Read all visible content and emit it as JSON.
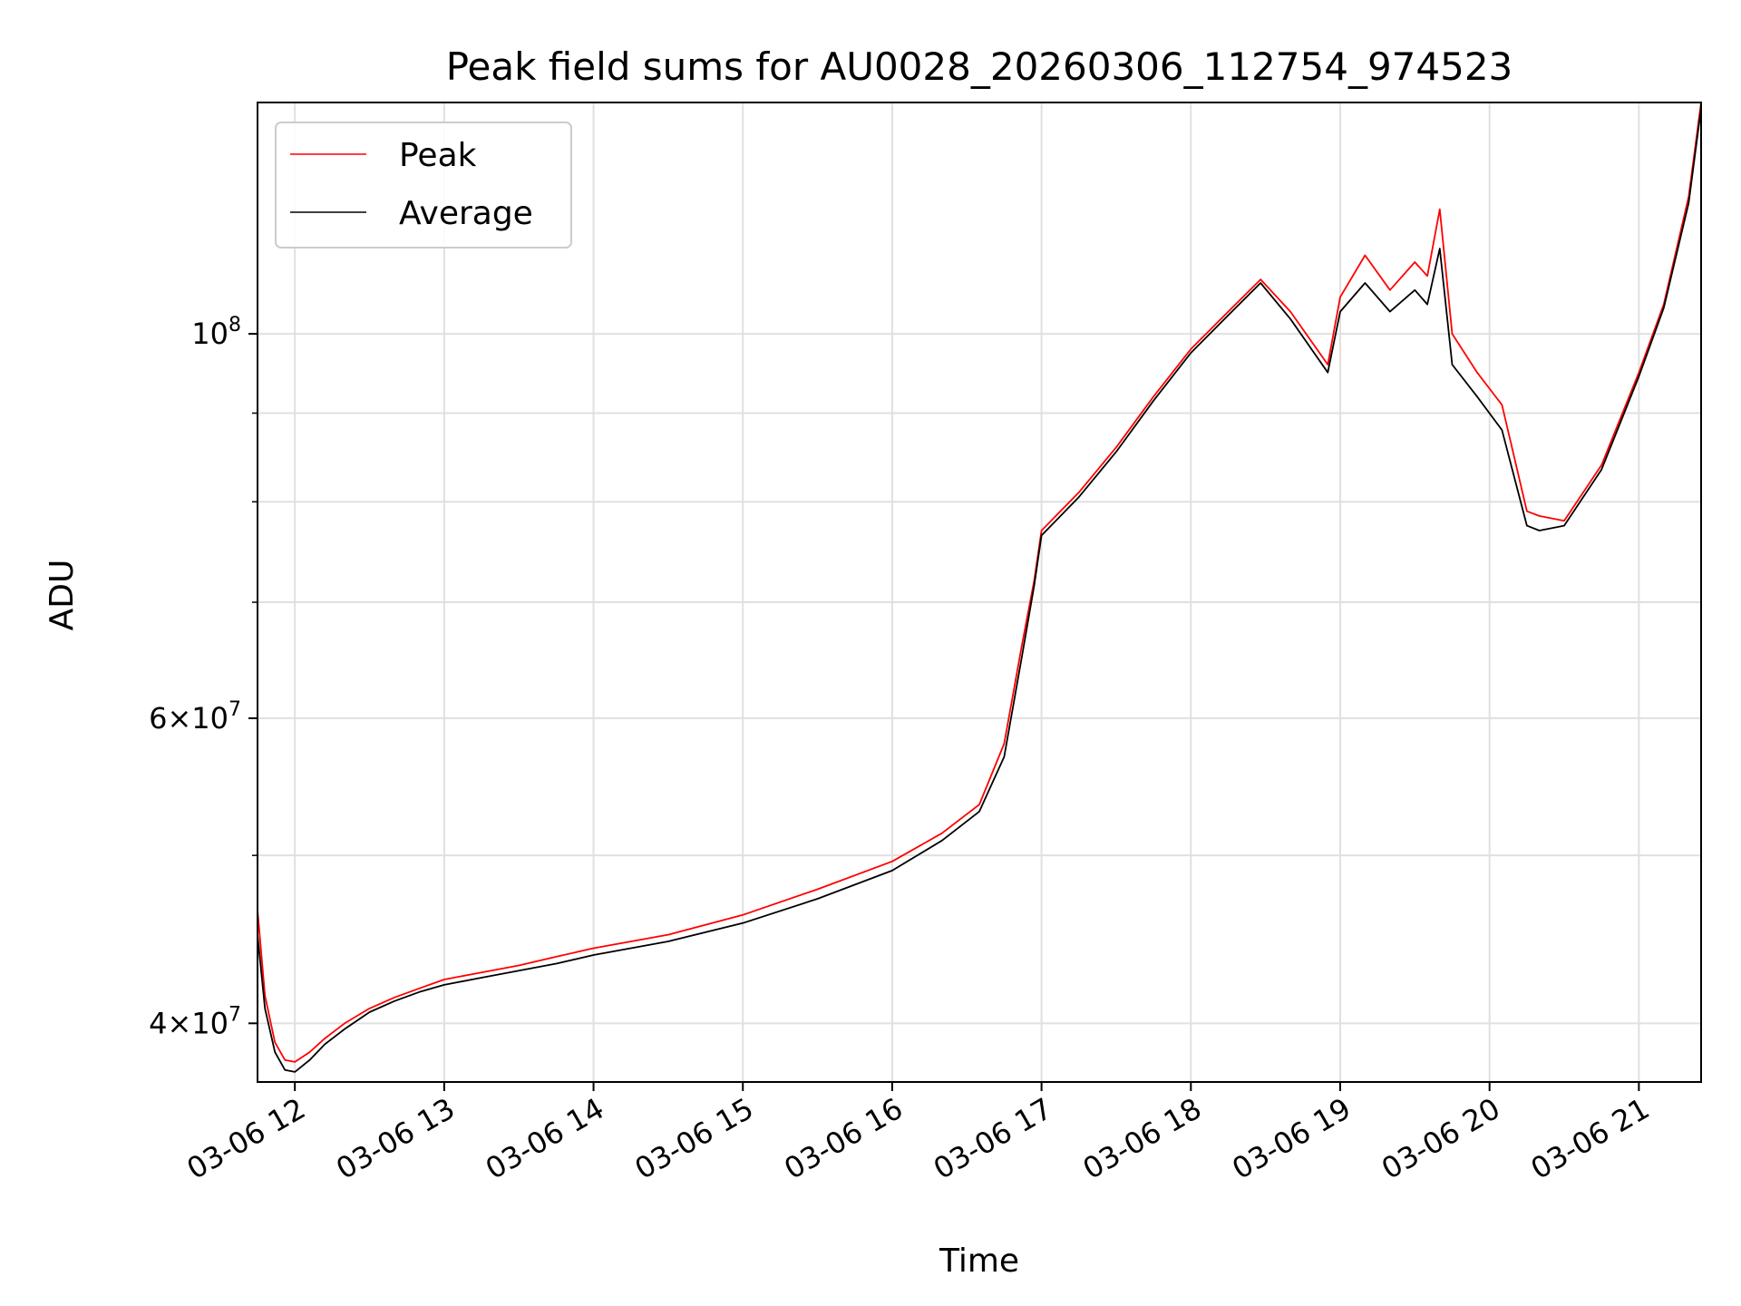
{
  "chart_data": {
    "type": "line",
    "title": "Peak field sums for AU0028_20260306_112754_974523",
    "xlabel": "Time",
    "ylabel": "ADU",
    "y_scale": "log",
    "ylim": [
      37000000,
      136000000
    ],
    "xlim": [
      "03-06 11:45",
      "03-06 21:25"
    ],
    "grid": true,
    "legend_position": "top-left",
    "x_ticks": [
      "03-06 12",
      "03-06 13",
      "03-06 14",
      "03-06 15",
      "03-06 16",
      "03-06 17",
      "03-06 18",
      "03-06 19",
      "03-06 20",
      "03-06 21"
    ],
    "y_ticks_major": [
      {
        "value": 40000000,
        "mantissa": "4",
        "exponent": "7"
      },
      {
        "value": 60000000,
        "mantissa": "6",
        "exponent": "7"
      },
      {
        "value": 100000000,
        "mantissa": "",
        "exponent": "8"
      }
    ],
    "y_ticks_minor": [
      50000000,
      70000000,
      80000000,
      90000000
    ],
    "series": [
      {
        "name": "Peak",
        "color": "#ff0000",
        "x": [
          "03-06 11:45",
          "03-06 11:48",
          "03-06 11:52",
          "03-06 11:56",
          "03-06 12:00",
          "03-06 12:06",
          "03-06 12:12",
          "03-06 12:20",
          "03-06 12:30",
          "03-06 12:40",
          "03-06 12:50",
          "03-06 13:00",
          "03-06 13:15",
          "03-06 13:30",
          "03-06 13:45",
          "03-06 14:00",
          "03-06 14:30",
          "03-06 15:00",
          "03-06 15:30",
          "03-06 16:00",
          "03-06 16:20",
          "03-06 16:35",
          "03-06 16:45",
          "03-06 16:52",
          "03-06 16:57",
          "03-06 17:00",
          "03-06 17:15",
          "03-06 17:30",
          "03-06 17:45",
          "03-06 18:00",
          "03-06 18:15",
          "03-06 18:28",
          "03-06 18:40",
          "03-06 18:55",
          "03-06 19:00",
          "03-06 19:10",
          "03-06 19:20",
          "03-06 19:30",
          "03-06 19:35",
          "03-06 19:40",
          "03-06 19:45",
          "03-06 19:55",
          "03-06 20:05",
          "03-06 20:15",
          "03-06 20:20",
          "03-06 20:30",
          "03-06 20:45",
          "03-06 21:00",
          "03-06 21:10",
          "03-06 21:20",
          "03-06 21:25"
        ],
        "values": [
          46500000,
          41500000,
          39000000,
          38100000,
          38000000,
          38500000,
          39200000,
          40000000,
          40800000,
          41400000,
          41900000,
          42400000,
          42800000,
          43200000,
          43700000,
          44200000,
          45000000,
          46200000,
          47800000,
          49600000,
          51500000,
          53500000,
          58000000,
          66000000,
          72000000,
          77000000,
          81000000,
          86000000,
          92000000,
          98000000,
          103000000,
          107500000,
          103000000,
          96000000,
          105000000,
          111000000,
          106000000,
          110000000,
          108000000,
          118000000,
          100000000,
          95000000,
          91000000,
          79000000,
          78500000,
          78000000,
          84000000,
          95000000,
          104000000,
          120000000,
          136000000
        ]
      },
      {
        "name": "Average",
        "color": "#000000",
        "x": [
          "03-06 11:45",
          "03-06 11:48",
          "03-06 11:52",
          "03-06 11:56",
          "03-06 12:00",
          "03-06 12:06",
          "03-06 12:12",
          "03-06 12:20",
          "03-06 12:30",
          "03-06 12:40",
          "03-06 12:50",
          "03-06 13:00",
          "03-06 13:15",
          "03-06 13:30",
          "03-06 13:45",
          "03-06 14:00",
          "03-06 14:30",
          "03-06 15:00",
          "03-06 15:30",
          "03-06 16:00",
          "03-06 16:20",
          "03-06 16:35",
          "03-06 16:45",
          "03-06 16:52",
          "03-06 16:57",
          "03-06 17:00",
          "03-06 17:15",
          "03-06 17:30",
          "03-06 17:45",
          "03-06 18:00",
          "03-06 18:15",
          "03-06 18:28",
          "03-06 18:40",
          "03-06 18:55",
          "03-06 19:00",
          "03-06 19:10",
          "03-06 19:20",
          "03-06 19:30",
          "03-06 19:35",
          "03-06 19:40",
          "03-06 19:45",
          "03-06 19:55",
          "03-06 20:05",
          "03-06 20:15",
          "03-06 20:20",
          "03-06 20:30",
          "03-06 20:45",
          "03-06 21:00",
          "03-06 21:10",
          "03-06 21:20",
          "03-06 21:25"
        ],
        "values": [
          45000000,
          40800000,
          38500000,
          37600000,
          37500000,
          38100000,
          38900000,
          39700000,
          40600000,
          41200000,
          41700000,
          42100000,
          42500000,
          42900000,
          43300000,
          43800000,
          44600000,
          45700000,
          47200000,
          49000000,
          51000000,
          53000000,
          57000000,
          65000000,
          71500000,
          76500000,
          80500000,
          85500000,
          91500000,
          97500000,
          102500000,
          107000000,
          102000000,
          95000000,
          103000000,
          107000000,
          103000000,
          106000000,
          104000000,
          112000000,
          96000000,
          92000000,
          88000000,
          77500000,
          77000000,
          77500000,
          83500000,
          94500000,
          103500000,
          119000000,
          135000000
        ]
      }
    ]
  }
}
